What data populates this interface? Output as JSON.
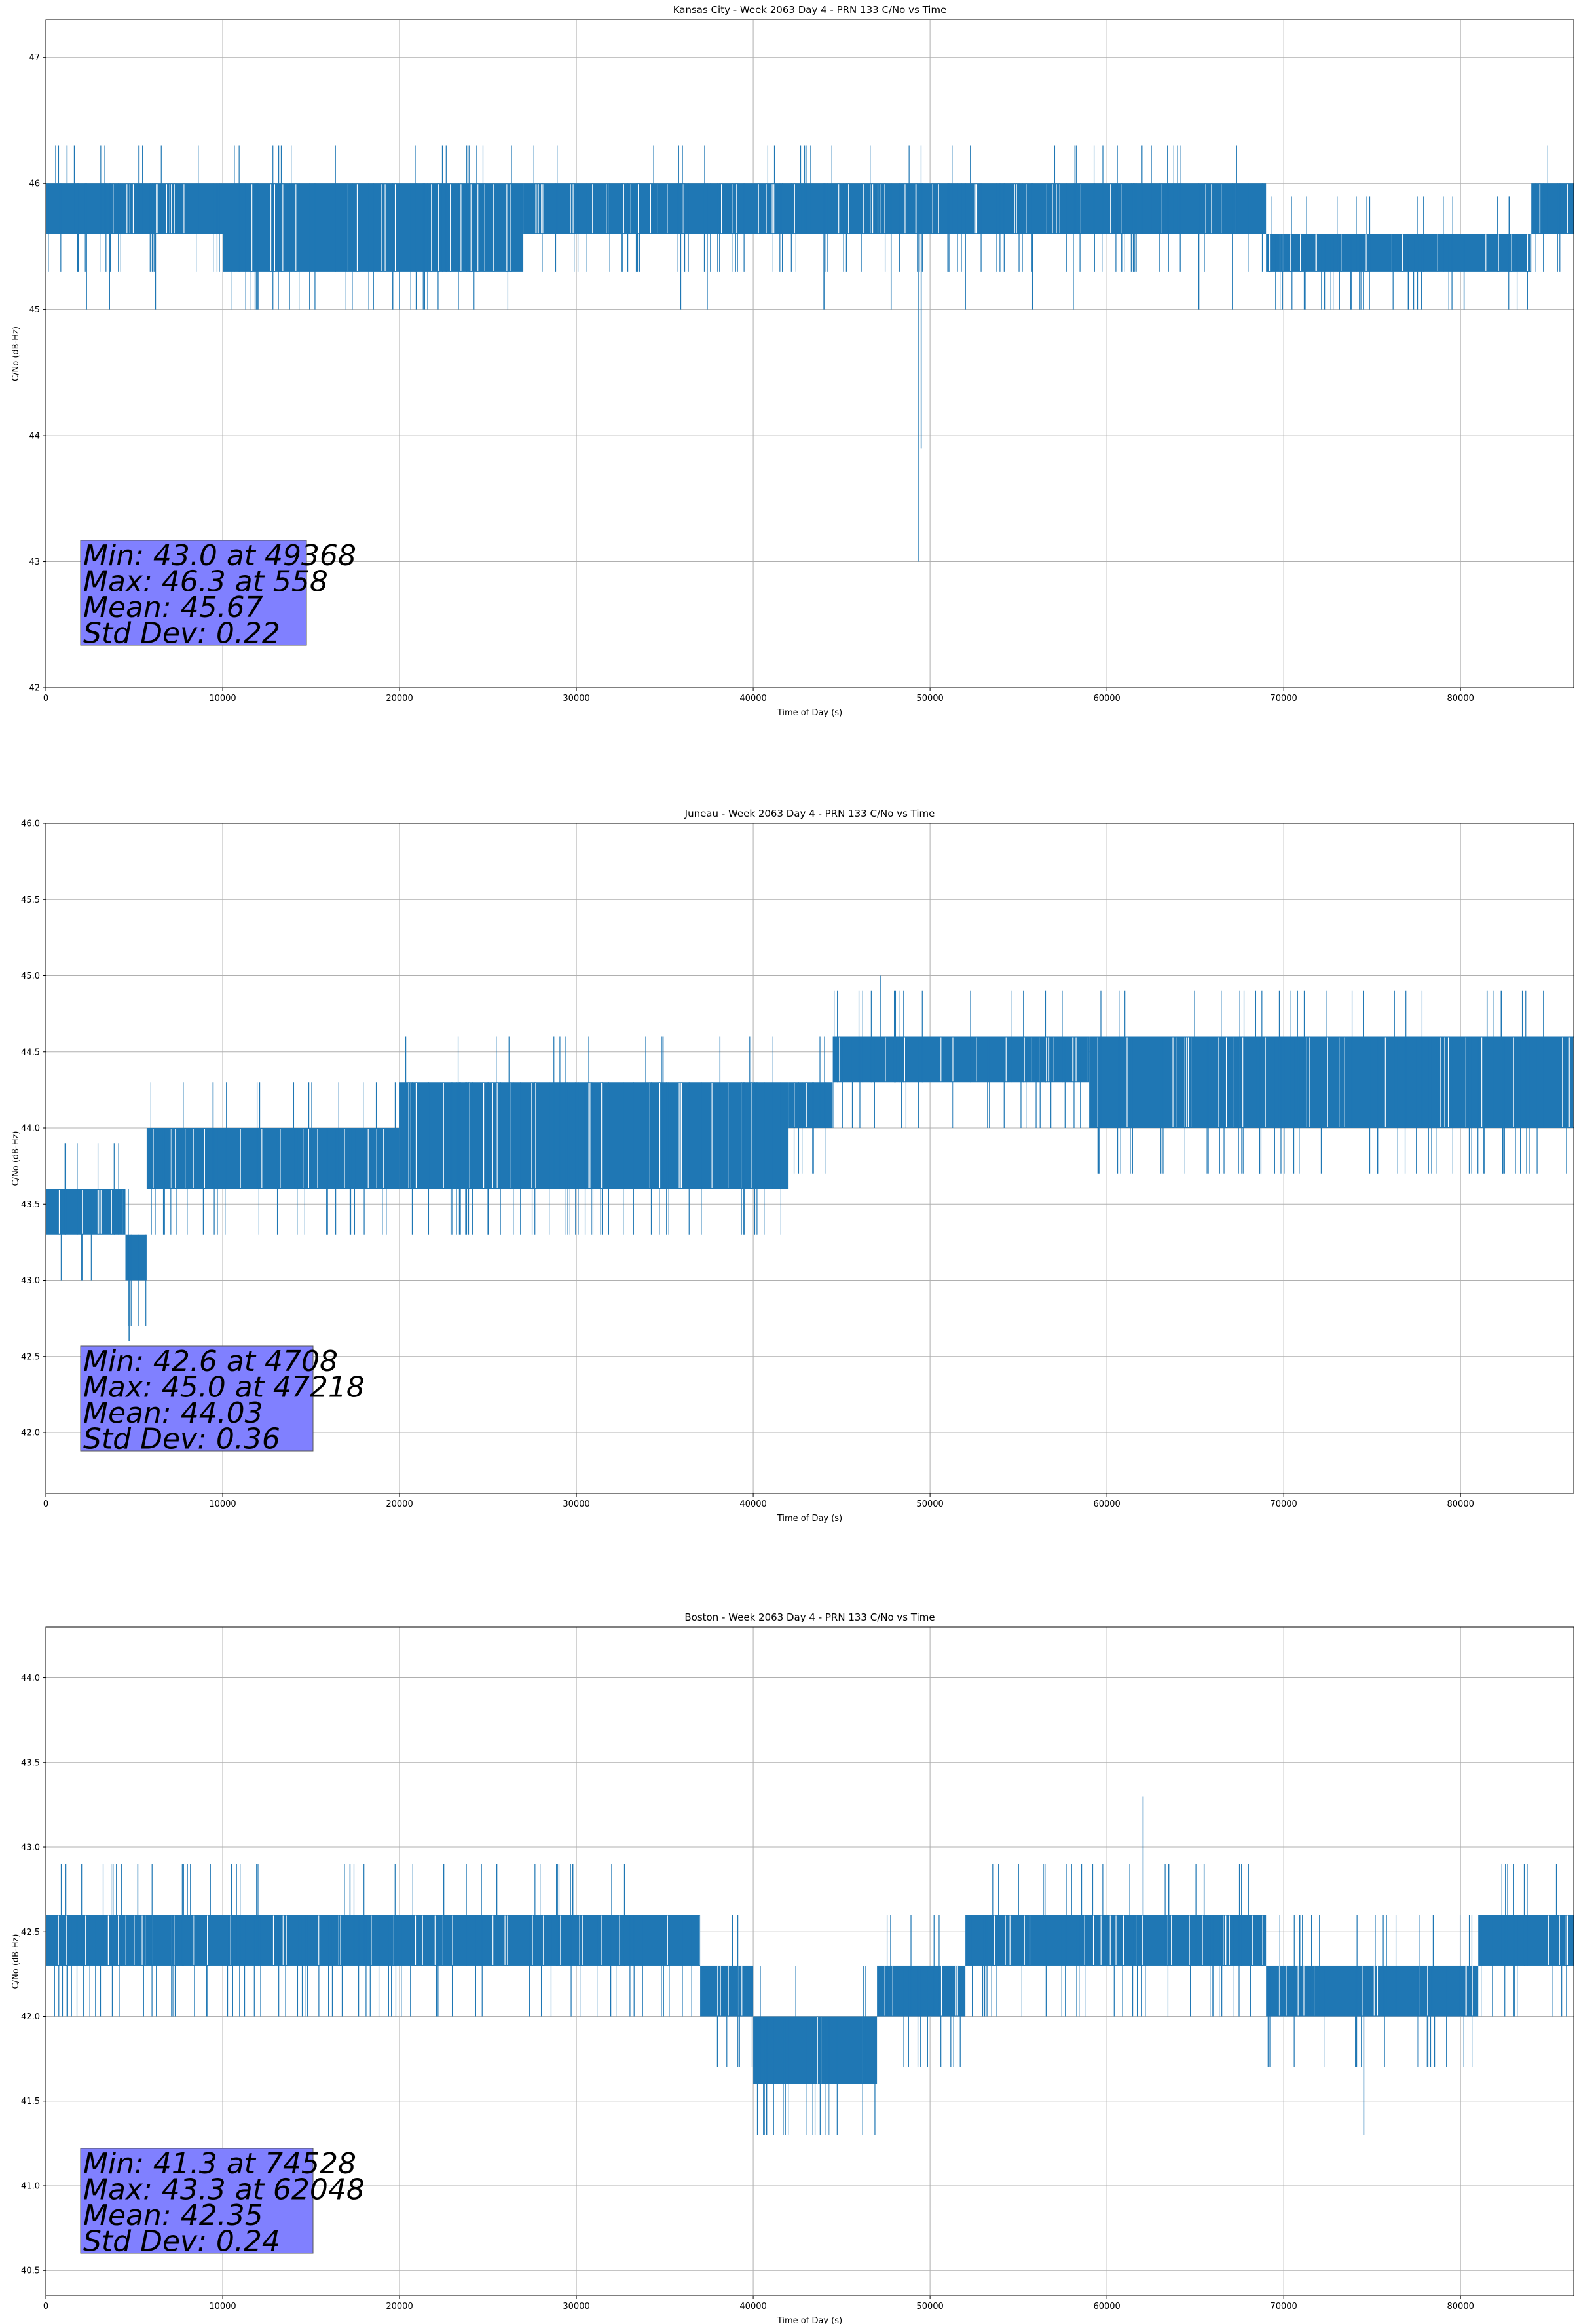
{
  "chart_data": [
    {
      "type": "line",
      "title": "Kansas City - Week 2063 Day 4 - PRN 133 C/No vs Time",
      "xlabel": "Time of Day (s)",
      "ylabel": "C/No (dB-Hz)",
      "xlim": [
        0,
        86400
      ],
      "ylim": [
        42,
        47.3
      ],
      "xticks": [
        0,
        10000,
        20000,
        30000,
        40000,
        50000,
        60000,
        70000,
        80000
      ],
      "yticks": [
        "42",
        "43",
        "44",
        "45",
        "46",
        "47"
      ],
      "ytick_values": [
        42,
        43,
        44,
        45,
        46,
        47
      ],
      "grid": true,
      "color": "#1f77b4",
      "series": [
        {
          "segments": [
            {
              "x0": 0,
              "x1": 10000,
              "lo": 45.6,
              "hi": 46.0
            },
            {
              "x0": 10000,
              "x1": 27000,
              "lo": 45.3,
              "hi": 46.0
            },
            {
              "x0": 27000,
              "x1": 69000,
              "lo": 45.6,
              "hi": 46.0
            },
            {
              "x0": 69000,
              "x1": 84000,
              "lo": 45.3,
              "hi": 45.6
            },
            {
              "x0": 84000,
              "x1": 86400,
              "lo": 45.6,
              "hi": 46.0
            }
          ],
          "dips": [
            {
              "x": 49368,
              "y": 43.0
            },
            {
              "x": 49500,
              "y": 43.9
            }
          ],
          "spikes": [
            46.3,
            45.0
          ],
          "spike_x": [
            558,
            1200,
            2300,
            3600,
            6200,
            35900,
            37400,
            44000,
            47800,
            52000,
            55800,
            58100,
            65200,
            67100,
            77800,
            80200
          ]
        }
      ],
      "stats": [
        "Min: 43.0 at 49368",
        "Max: 46.3 at 558",
        "Mean: 45.67",
        "Std Dev: 0.22"
      ]
    },
    {
      "type": "line",
      "title": "Juneau - Week 2063 Day 4 - PRN 133 C/No vs Time",
      "xlabel": "Time of Day (s)",
      "ylabel": "C/No (dB-Hz)",
      "xlim": [
        0,
        86400
      ],
      "ylim": [
        41.6,
        46.0
      ],
      "xticks": [
        0,
        10000,
        20000,
        30000,
        40000,
        50000,
        60000,
        70000,
        80000
      ],
      "yticks": [
        "42.0",
        "42.5",
        "43.0",
        "43.5",
        "44.0",
        "44.5",
        "45.0",
        "45.5",
        "46.0"
      ],
      "ytick_values": [
        42.0,
        42.5,
        43.0,
        43.5,
        44.0,
        44.5,
        45.0,
        45.5,
        46.0
      ],
      "grid": true,
      "color": "#1f77b4",
      "series": [
        {
          "segments": [
            {
              "x0": 0,
              "x1": 4500,
              "lo": 43.3,
              "hi": 43.6
            },
            {
              "x0": 4500,
              "x1": 5700,
              "lo": 43.0,
              "hi": 43.3
            },
            {
              "x0": 5700,
              "x1": 20000,
              "lo": 43.6,
              "hi": 44.0
            },
            {
              "x0": 20000,
              "x1": 42000,
              "lo": 43.6,
              "hi": 44.3
            },
            {
              "x0": 42000,
              "x1": 44500,
              "lo": 44.0,
              "hi": 44.3
            },
            {
              "x0": 44500,
              "x1": 59000,
              "lo": 44.3,
              "hi": 44.6
            },
            {
              "x0": 59000,
              "x1": 86400,
              "lo": 44.0,
              "hi": 44.6
            }
          ],
          "dips": [
            {
              "x": 4708,
              "y": 42.6
            }
          ],
          "spikes": [
            45.0
          ],
          "spike_x": [
            47218,
            81500,
            82300,
            83500
          ]
        }
      ],
      "stats": [
        "Min: 42.6 at 4708",
        "Max: 45.0 at 47218",
        "Mean: 44.03",
        "Std Dev: 0.36"
      ]
    },
    {
      "type": "line",
      "title": "Boston - Week 2063 Day 4 - PRN 133 C/No vs Time",
      "xlabel": "Time of Day (s)",
      "ylabel": "C/No (dB-Hz)",
      "xlim": [
        0,
        86400
      ],
      "ylim": [
        40.35,
        44.3
      ],
      "xticks": [
        0,
        10000,
        20000,
        30000,
        40000,
        50000,
        60000,
        70000,
        80000
      ],
      "yticks": [
        "40.5",
        "41.0",
        "41.5",
        "42.0",
        "42.5",
        "43.0",
        "43.5",
        "44.0"
      ],
      "ytick_values": [
        40.5,
        41.0,
        41.5,
        42.0,
        42.5,
        43.0,
        43.5,
        44.0
      ],
      "grid": true,
      "color": "#1f77b4",
      "series": [
        {
          "segments": [
            {
              "x0": 0,
              "x1": 37000,
              "lo": 42.3,
              "hi": 42.6
            },
            {
              "x0": 37000,
              "x1": 40000,
              "lo": 42.0,
              "hi": 42.3
            },
            {
              "x0": 40000,
              "x1": 47000,
              "lo": 41.6,
              "hi": 42.0
            },
            {
              "x0": 47000,
              "x1": 52000,
              "lo": 42.0,
              "hi": 42.3
            },
            {
              "x0": 52000,
              "x1": 69000,
              "lo": 42.3,
              "hi": 42.6
            },
            {
              "x0": 69000,
              "x1": 81000,
              "lo": 42.0,
              "hi": 42.3
            },
            {
              "x0": 81000,
              "x1": 86400,
              "lo": 42.3,
              "hi": 42.6
            }
          ],
          "dips": [
            {
              "x": 74528,
              "y": 41.3
            }
          ],
          "spikes": [
            43.3,
            43.0
          ],
          "spike_x": [
            62048,
            67500,
            3800,
            5200,
            8000,
            9300,
            10500,
            17200,
            22500,
            25500,
            29800,
            32000,
            55000,
            56500,
            58000,
            63500,
            65500,
            68000,
            80500,
            83000
          ]
        }
      ],
      "stats": [
        "Min: 41.3 at 74528",
        "Max: 43.3 at 62048",
        "Mean: 42.35",
        "Std Dev: 0.24"
      ]
    }
  ]
}
